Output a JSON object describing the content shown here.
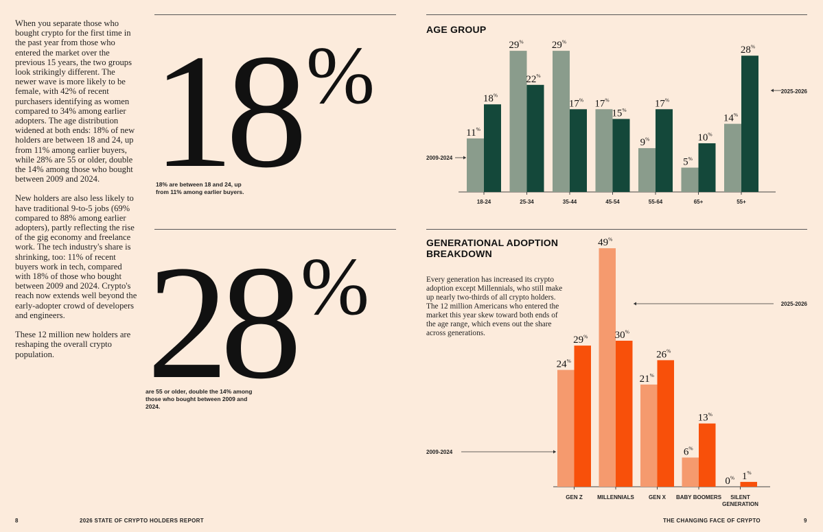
{
  "left_page": {
    "paragraphs": [
      "When you separate those who bought crypto for the first time in the past year from those who entered the market over the previous 15 years, the two groups look strikingly different. The newer wave is more likely to be female, with 42% of recent purchasers identifying as women compared to 34% among earlier adopters. The age distribution widened at both ends: 18% of new holders are between 18 and 24, up from 11% among earlier buyers, while 28% are 55 or older, double the 14% among those who bought between 2009 and 2024.",
      "New holders are also less likely to have traditional 9-to-5 jobs (69% compared to 88% among earlier adopters), partly reflecting the rise of the gig economy and freelance work. The tech industry's share is shrinking, too: 11% of recent buyers work in tech, compared with 18% of those who bought between 2009 and 2024. Crypto's reach now extends well beyond the early-adopter crowd of developers and engineers.",
      "These 12 million new holders are reshaping the overall crypto population."
    ],
    "stat1": {
      "value": "18",
      "suffix": "%",
      "caption": "18% are between 18 and 24, up from 11% among earlier buyers."
    },
    "stat2": {
      "value": "28",
      "suffix": "%",
      "caption": "are 55 or older, double the 14% among those who bought between 2009 and 2024."
    }
  },
  "right_page": {
    "age_title": "AGE GROUP",
    "gen_title_line1": "GENERATIONAL ADOPTION",
    "gen_title_line2": "BREAKDOWN",
    "gen_text": "Every generation has increased its crypto adoption except Millennials, who still make up nearly two-thirds of all crypto holders. The 12 million Americans who entered the market this year skew toward both ends of the age range, which evens out the share across generations."
  },
  "footer": {
    "left_page_number": "8",
    "left_title": "2026 STATE OF CRYPTO HOLDERS REPORT",
    "right_title": "THE CHANGING FACE OF CRYPTO",
    "right_page_number": "9"
  },
  "chart_data": [
    {
      "type": "bar",
      "title": "AGE GROUP",
      "categories": [
        "18-24",
        "25-34",
        "35-44",
        "45-54",
        "55-64",
        "65+",
        "55+"
      ],
      "series": [
        {
          "name": "2009-2024",
          "values": [
            11,
            29,
            29,
            17,
            9,
            5,
            14
          ],
          "color": "#8a9c8c"
        },
        {
          "name": "2025-2026",
          "values": [
            18,
            22,
            17,
            15,
            17,
            10,
            28
          ],
          "color": "#14483a"
        }
      ],
      "ylim": [
        0,
        30
      ],
      "value_suffix": "%",
      "grid": false,
      "legend": "inline-arrows"
    },
    {
      "type": "bar",
      "title": "GENERATIONAL ADOPTION BREAKDOWN",
      "categories": [
        "GEN Z",
        "MILLENNIALS",
        "GEN X",
        "BABY BOOMERS",
        "SILENT GENERATION"
      ],
      "series": [
        {
          "name": "2009-2024",
          "values": [
            24,
            49,
            21,
            6,
            0
          ],
          "color": "#f59a6e"
        },
        {
          "name": "2025-2026",
          "values": [
            29,
            30,
            26,
            13,
            1
          ],
          "color": "#f8500a"
        }
      ],
      "ylim": [
        0,
        49
      ],
      "value_suffix": "%",
      "grid": false,
      "legend": "inline-arrows"
    }
  ]
}
